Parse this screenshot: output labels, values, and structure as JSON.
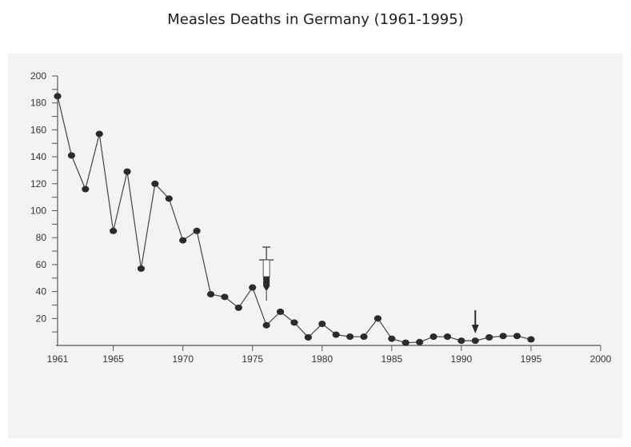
{
  "chart_data": {
    "type": "line",
    "title": "Measles Deaths in Germany (1961-1995)",
    "xlabel": "",
    "ylabel": "",
    "xlim": [
      1961,
      2000
    ],
    "ylim": [
      0,
      200
    ],
    "x_ticks": [
      "1961",
      "1965",
      "1970",
      "1975",
      "1980",
      "1985",
      "1990",
      "1995",
      "2000"
    ],
    "y_ticks": [
      "20",
      "40",
      "60",
      "80",
      "100",
      "120",
      "140",
      "160",
      "180",
      "200"
    ],
    "grid": false,
    "series": [
      {
        "name": "Measles deaths",
        "x": [
          1961,
          1962,
          1963,
          1964,
          1965,
          1966,
          1967,
          1968,
          1969,
          1970,
          1971,
          1972,
          1973,
          1974,
          1975,
          1976,
          1977,
          1978,
          1979,
          1980,
          1981,
          1982,
          1983,
          1984,
          1985,
          1986,
          1987,
          1988,
          1989,
          1990,
          1991,
          1992,
          1993,
          1994,
          1995
        ],
        "values": [
          185,
          141,
          116,
          157,
          85,
          129,
          57,
          120,
          109,
          78,
          85,
          38,
          36,
          28,
          43,
          15,
          25,
          17,
          6,
          16,
          8,
          6.5,
          6.5,
          20,
          5,
          2,
          2.5,
          6.5,
          6.5,
          3.5,
          3.5,
          6,
          7,
          7,
          4.5
        ]
      }
    ],
    "annotations": [
      {
        "type": "syringe-icon",
        "x": 1976,
        "meaning": "vaccine introduction"
      },
      {
        "type": "arrow-down-icon",
        "x": 1991
      }
    ],
    "colors": {
      "line": "#444444",
      "marker": "#2b2b2b",
      "panel": "#f3f3f3"
    }
  }
}
